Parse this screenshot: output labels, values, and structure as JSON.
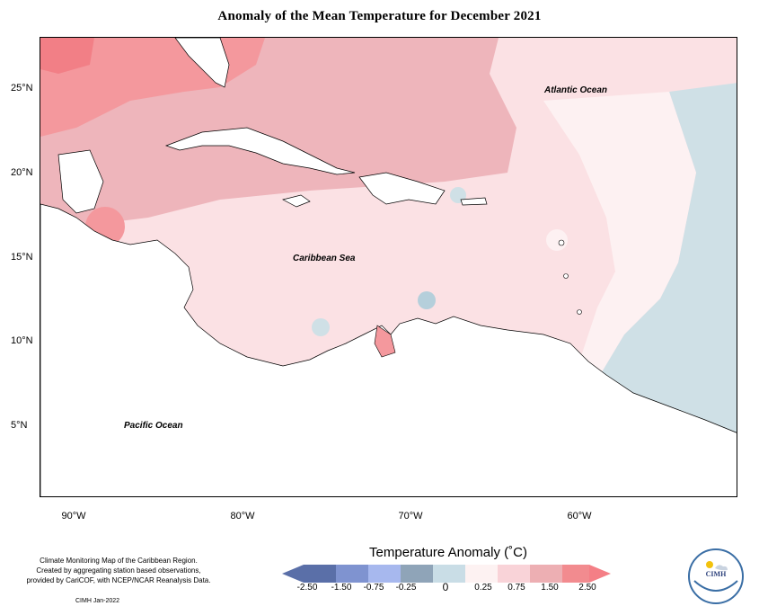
{
  "title": "Anomaly of the Mean Temperature for December 2021",
  "map": {
    "lat_labels": [
      "25°N",
      "20°N",
      "15°N",
      "10°N",
      "5°N"
    ],
    "lon_labels": [
      "90°W",
      "80°W",
      "70°W",
      "60°W"
    ],
    "places": {
      "atlantic": "Atlantic Ocean",
      "caribbean": "Caribbean Sea",
      "pacific": "Pacific Ocean"
    }
  },
  "legend": {
    "title": "Temperature Anomaly (˚C)",
    "ticks": [
      "-2.50",
      "-1.50",
      "-0.75",
      "-0.25",
      "0",
      "0.25",
      "0.75",
      "1.50",
      "2.50"
    ],
    "colors": [
      "#5a6fa8",
      "#7f93d0",
      "#a7b8ee",
      "#8fa4b8",
      "#c9dde6",
      "#fdf2f2",
      "#f9d3d8",
      "#edafb3",
      "#f28b8f",
      "#f47f86"
    ]
  },
  "footer": {
    "note_line1": "Climate Monitoring Map of the Caribbean Region.",
    "note_line2": "Created by aggregating station based observations,",
    "note_line3": "provided by CariCOF, with NCEP/NCAR Reanalysis Data.",
    "credit": "CIMH Jan-2022"
  },
  "logo": {
    "text": "CIMH"
  }
}
